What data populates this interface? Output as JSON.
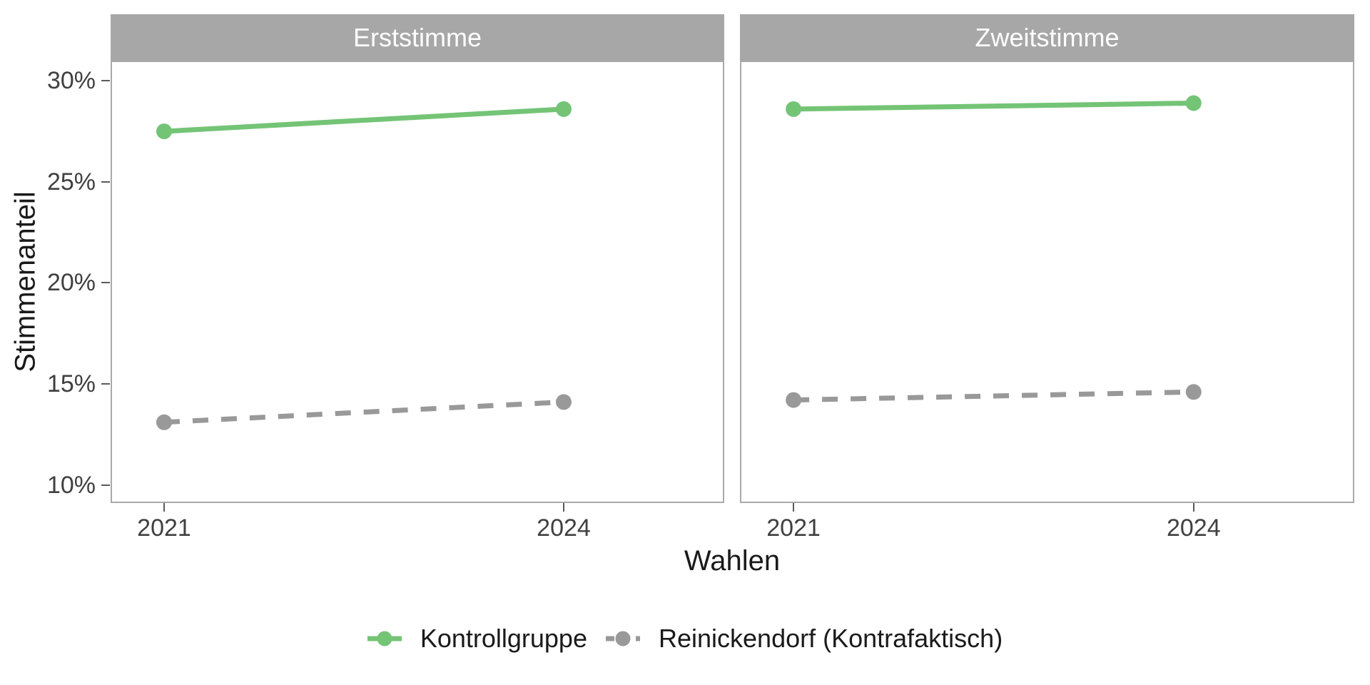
{
  "chart_data": {
    "type": "line",
    "xlabel": "Wahlen",
    "ylabel": "Stimmenanteil",
    "x_categories": [
      "2021",
      "2024"
    ],
    "y_tick_labels": [
      "30%",
      "25%",
      "20%",
      "15%",
      "10%"
    ],
    "y_tick_values": [
      30,
      25,
      20,
      15,
      10
    ],
    "ylim": [
      9.1,
      31
    ],
    "grid": false,
    "legend_position": "bottom",
    "facets": [
      {
        "label": "Erststimme",
        "series": [
          {
            "name": "Kontrollgruppe",
            "x": [
              "2021",
              "2024"
            ],
            "values": [
              27.5,
              28.6
            ],
            "color": "#74c476",
            "style": "solid"
          },
          {
            "name": "Reinickendorf (Kontrafaktisch)",
            "x": [
              "2021",
              "2024"
            ],
            "values": [
              13.1,
              14.1
            ],
            "color": "#999999",
            "style": "dashed"
          }
        ]
      },
      {
        "label": "Zweitstimme",
        "series": [
          {
            "name": "Kontrollgruppe",
            "x": [
              "2021",
              "2024"
            ],
            "values": [
              28.6,
              28.9
            ],
            "color": "#74c476",
            "style": "solid"
          },
          {
            "name": "Reinickendorf (Kontrafaktisch)",
            "x": [
              "2021",
              "2024"
            ],
            "values": [
              14.2,
              14.6
            ],
            "color": "#999999",
            "style": "dashed"
          }
        ]
      }
    ],
    "legend": [
      {
        "label": "Kontrollgruppe",
        "color": "#74c476",
        "style": "solid"
      },
      {
        "label": "Reinickendorf (Kontrafaktisch)",
        "color": "#999999",
        "style": "dashed"
      }
    ]
  },
  "theme": {
    "background": "#ffffff",
    "strip_bg": "#a7a7a7",
    "strip_text": "#ffffff",
    "panel_border": "#a9a9a9",
    "tick_color": "#5a5a5a",
    "tick_label_color": "#404040",
    "axis_title_color": "#1a1a1a",
    "legend_text_color": "#1a1a1a"
  }
}
